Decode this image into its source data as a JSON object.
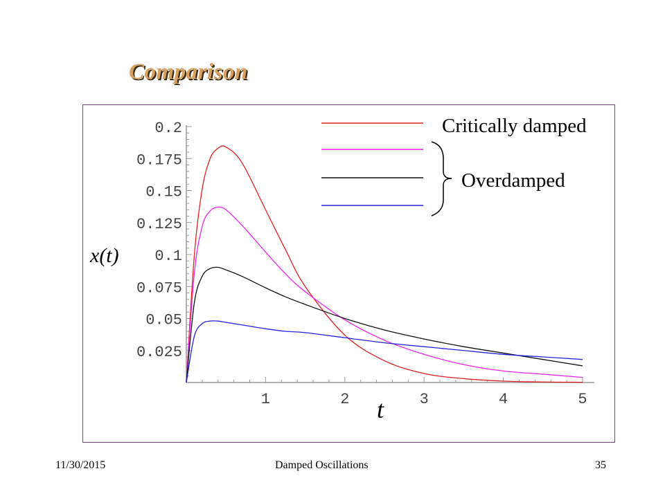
{
  "slide": {
    "title": "Comparison",
    "footer_date": "11/30/2015",
    "footer_title": "Damped Oscillations",
    "footer_page": "35"
  },
  "legend": {
    "critical_label": "Critically damped",
    "overdamped_label": "Overdamped"
  },
  "colors": {
    "critical": "#e02020",
    "over1": "#ee22ee",
    "over2": "#111111",
    "over3": "#2222dd",
    "frame": "#7a3b8a"
  },
  "chart_data": {
    "type": "line",
    "title": "",
    "xlabel": "t",
    "ylabel": "x(t)",
    "xlim": [
      0,
      5
    ],
    "ylim": [
      0,
      0.2
    ],
    "x_ticks": [
      "1",
      "2",
      "3",
      "4",
      "5"
    ],
    "y_ticks": [
      "0.025",
      "0.05",
      "0.075",
      "0.1",
      "0.125",
      "0.15",
      "0.175",
      "0.2"
    ],
    "grid": false,
    "legend_position": "top-right",
    "x": [
      0,
      0.1,
      0.2,
      0.3,
      0.4,
      0.5,
      0.7,
      1.0,
      1.25,
      1.5,
      2.0,
      2.5,
      3.0,
      3.5,
      4.0,
      4.5,
      5.0
    ],
    "series": [
      {
        "name": "Critically damped",
        "color_key": "critical",
        "values": [
          0,
          0.099,
          0.151,
          0.175,
          0.183,
          0.184,
          0.172,
          0.135,
          0.104,
          0.075,
          0.037,
          0.017,
          0.007,
          0.003,
          0.0011,
          0.0004,
          0.0002
        ]
      },
      {
        "name": "Overdamped",
        "color_key": "over1",
        "values": [
          0,
          0.085,
          0.122,
          0.134,
          0.137,
          0.135,
          0.123,
          0.102,
          0.085,
          0.071,
          0.049,
          0.033,
          0.022,
          0.014,
          0.009,
          0.0065,
          0.004
        ]
      },
      {
        "name": "Overdamped",
        "color_key": "over2",
        "values": [
          0,
          0.062,
          0.083,
          0.089,
          0.09,
          0.088,
          0.083,
          0.074,
          0.067,
          0.061,
          0.05,
          0.041,
          0.034,
          0.028,
          0.023,
          0.018,
          0.013
        ]
      },
      {
        "name": "Overdamped",
        "color_key": "over3",
        "values": [
          0,
          0.036,
          0.046,
          0.048,
          0.048,
          0.047,
          0.045,
          0.042,
          0.04,
          0.039,
          0.035,
          0.031,
          0.028,
          0.025,
          0.022,
          0.02,
          0.018
        ]
      }
    ]
  }
}
